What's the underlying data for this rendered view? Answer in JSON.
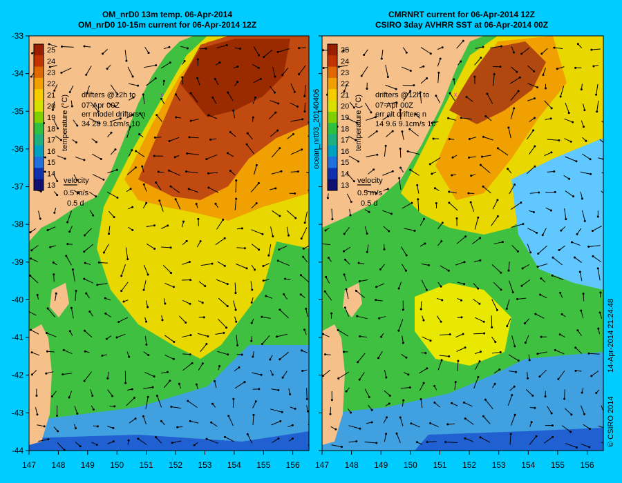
{
  "panels": [
    {
      "id": "left",
      "title_line1": "OM_nrD0 13m temp. 06-Apr-2014",
      "title_line2": "OM_nrD0 10-15m current for 06-Apr-2014 12Z",
      "drifter_note": [
        "drifters @12h to",
        "07-Apr 00Z",
        "err model drifters n",
        "34 28 9.1cm/s 10"
      ]
    },
    {
      "id": "right",
      "title_line1": "CMRNRT current for 06-Apr-2014 12Z",
      "title_line2": "CSIRO 3day AVHRR SST at 06-Apr-2014 00Z",
      "drifter_note": [
        "drifters @12h to",
        "07-Apr 00Z",
        "err alt drifters n",
        "14 9.6 9.1cm/s 10"
      ]
    }
  ],
  "colorbar": {
    "label": "temperature (°C)",
    "ticks": [
      "25",
      "24",
      "23",
      "22",
      "21",
      "20",
      "19",
      "18",
      "17",
      "16",
      "15",
      "14",
      "13"
    ],
    "colors": [
      "#9a1f00",
      "#c23300",
      "#e06800",
      "#f0a000",
      "#f5cc00",
      "#d8e000",
      "#80d000",
      "#30c040",
      "#20b080",
      "#00a0c0",
      "#2070e0",
      "#1030b0",
      "#101070"
    ]
  },
  "velocity_key": {
    "label": "velocity",
    "speed": "0.5 m/s",
    "time": "0.5 d"
  },
  "axes": {
    "x_ticks": [
      "147",
      "148",
      "149",
      "150",
      "151",
      "152",
      "153",
      "154",
      "155",
      "156"
    ],
    "y_ticks": [
      "-33",
      "-34",
      "-35",
      "-36",
      "-37",
      "-38",
      "-39",
      "-40",
      "-41",
      "-42",
      "-43",
      "-44"
    ]
  },
  "side_labels": {
    "run_id": "ocean_nrt03_20140406",
    "timestamp": "14-Apr-2014 21:24:48",
    "copyright": "CSIRO 2014"
  },
  "colors": {
    "background": "#00ccff",
    "land": "#f5c08a",
    "warm_core": "#c04a10",
    "shelf_green": "#40c040",
    "south_blue": "#40a0e0"
  }
}
